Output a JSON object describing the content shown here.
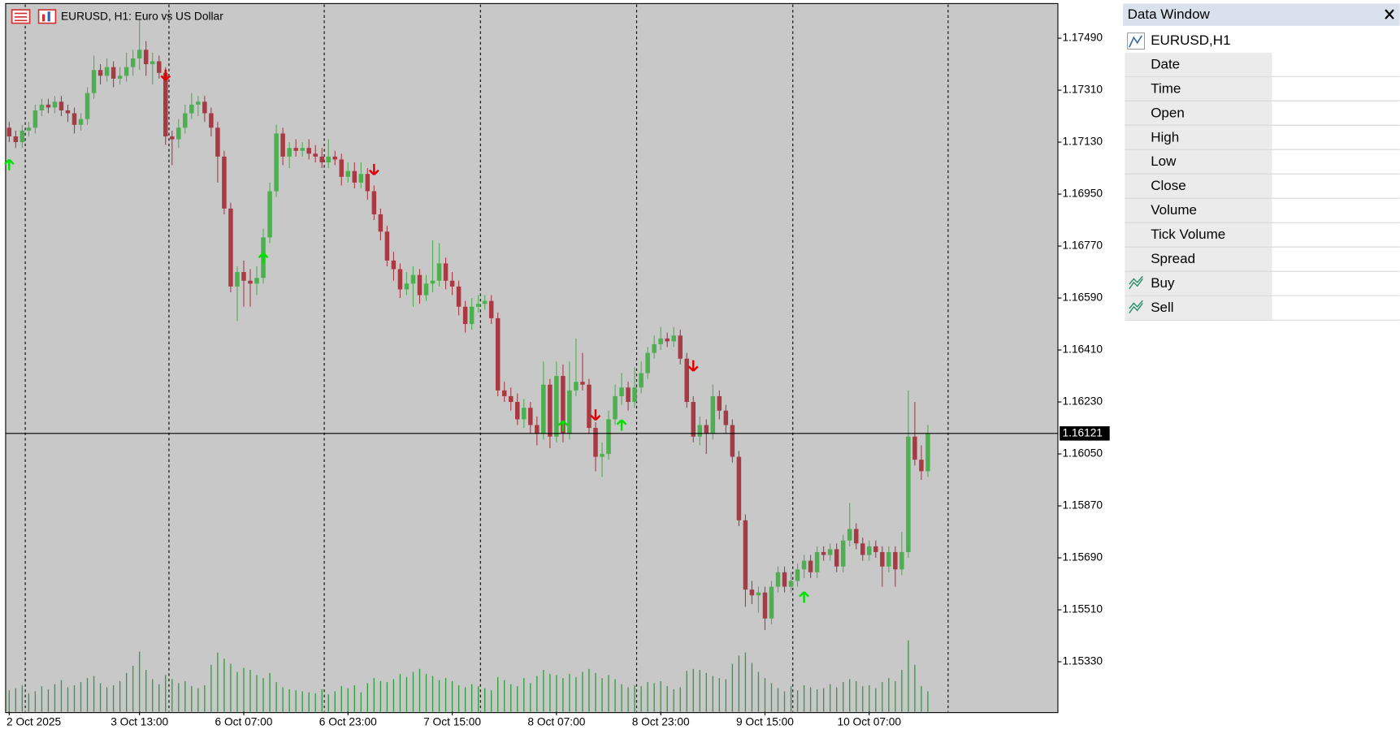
{
  "chart_data": {
    "type": "candlestick",
    "title": "EURUSD, H1:  Euro vs US Dollar",
    "ylim": [
      1.15157,
      1.17607
    ],
    "yticks": [
      {
        "value": 1.1749,
        "label": "1.17490"
      },
      {
        "value": 1.1731,
        "label": "1.17310"
      },
      {
        "value": 1.1713,
        "label": "1.17130"
      },
      {
        "value": 1.1695,
        "label": "1.16950"
      },
      {
        "value": 1.1677,
        "label": "1.16770"
      },
      {
        "value": 1.1659,
        "label": "1.16590"
      },
      {
        "value": 1.1641,
        "label": "1.16410"
      },
      {
        "value": 1.1623,
        "label": "1.16230"
      },
      {
        "value": 1.1605,
        "label": "1.16050"
      },
      {
        "value": 1.1587,
        "label": "1.15870"
      },
      {
        "value": 1.1569,
        "label": "1.15690"
      },
      {
        "value": 1.1551,
        "label": "1.15510"
      },
      {
        "value": 1.1533,
        "label": "1.15330"
      }
    ],
    "xticks": [
      {
        "value": 0,
        "label": "2 Oct 2025"
      },
      {
        "value": 20,
        "label": "3 Oct 13:00"
      },
      {
        "value": 36,
        "label": "6 Oct 07:00"
      },
      {
        "value": 52,
        "label": "6 Oct 23:00"
      },
      {
        "value": 68,
        "label": "7 Oct 15:00"
      },
      {
        "value": 84,
        "label": "8 Oct 07:00"
      },
      {
        "value": 100,
        "label": "8 Oct 23:00"
      },
      {
        "value": 116,
        "label": "9 Oct 15:00"
      },
      {
        "value": 132,
        "label": "10 Oct 07:00"
      }
    ],
    "current_price": 1.16121,
    "bull_color": "#4caf50",
    "bear_color": "#a83a44",
    "volume_color": "#2e9e3e",
    "candles": [
      [
        1.1718,
        1.172,
        1.1713,
        1.1715
      ],
      [
        1.1715,
        1.1717,
        1.1711,
        1.1713
      ],
      [
        1.1713,
        1.1719,
        1.1711,
        1.1717
      ],
      [
        1.1717,
        1.172,
        1.1715,
        1.1718
      ],
      [
        1.1718,
        1.1726,
        1.1716,
        1.1724
      ],
      [
        1.1724,
        1.1728,
        1.1722,
        1.1726
      ],
      [
        1.1726,
        1.1728,
        1.1723,
        1.1725
      ],
      [
        1.1725,
        1.1729,
        1.1723,
        1.1727
      ],
      [
        1.1727,
        1.1729,
        1.1722,
        1.1724
      ],
      [
        1.1724,
        1.1726,
        1.172,
        1.1723
      ],
      [
        1.1723,
        1.1725,
        1.1716,
        1.1719
      ],
      [
        1.1719,
        1.1723,
        1.1717,
        1.1721
      ],
      [
        1.1721,
        1.1732,
        1.1719,
        1.173
      ],
      [
        1.173,
        1.1743,
        1.1728,
        1.1738
      ],
      [
        1.1738,
        1.174,
        1.1733,
        1.1736
      ],
      [
        1.1736,
        1.1742,
        1.1734,
        1.1739
      ],
      [
        1.1739,
        1.1741,
        1.1732,
        1.1735
      ],
      [
        1.1735,
        1.1739,
        1.1733,
        1.1736
      ],
      [
        1.1736,
        1.1744,
        1.1734,
        1.1739
      ],
      [
        1.1739,
        1.1745,
        1.1736,
        1.1742
      ],
      [
        1.1742,
        1.1756,
        1.1738,
        1.1745
      ],
      [
        1.1745,
        1.1748,
        1.1736,
        1.174
      ],
      [
        1.174,
        1.1744,
        1.1733,
        1.1741
      ],
      [
        1.1741,
        1.1743,
        1.1735,
        1.1737
      ],
      [
        1.1737,
        1.1739,
        1.1712,
        1.1715
      ],
      [
        1.1715,
        1.1717,
        1.1705,
        1.1714
      ],
      [
        1.1714,
        1.1721,
        1.1711,
        1.1718
      ],
      [
        1.1718,
        1.1726,
        1.1716,
        1.1723
      ],
      [
        1.1723,
        1.173,
        1.1721,
        1.1726
      ],
      [
        1.1726,
        1.1729,
        1.1722,
        1.1727
      ],
      [
        1.1727,
        1.1729,
        1.172,
        1.1723
      ],
      [
        1.1723,
        1.1725,
        1.1715,
        1.1718
      ],
      [
        1.1718,
        1.172,
        1.1699,
        1.1708
      ],
      [
        1.1708,
        1.171,
        1.1688,
        1.169
      ],
      [
        1.169,
        1.1692,
        1.1661,
        1.1663
      ],
      [
        1.1663,
        1.167,
        1.1651,
        1.1668
      ],
      [
        1.1668,
        1.1672,
        1.1656,
        1.1665
      ],
      [
        1.1665,
        1.1669,
        1.1656,
        1.1664
      ],
      [
        1.1664,
        1.167,
        1.166,
        1.1666
      ],
      [
        1.1666,
        1.1683,
        1.1664,
        1.168
      ],
      [
        1.168,
        1.1699,
        1.1678,
        1.1696
      ],
      [
        1.1696,
        1.1719,
        1.1694,
        1.1716
      ],
      [
        1.1716,
        1.1718,
        1.1705,
        1.1708
      ],
      [
        1.1708,
        1.1713,
        1.1704,
        1.1711
      ],
      [
        1.1711,
        1.1714,
        1.1708,
        1.171
      ],
      [
        1.171,
        1.1713,
        1.1708,
        1.1711
      ],
      [
        1.1711,
        1.1714,
        1.1707,
        1.1709
      ],
      [
        1.1709,
        1.1712,
        1.1706,
        1.1708
      ],
      [
        1.1708,
        1.1711,
        1.1704,
        1.1706
      ],
      [
        1.1706,
        1.1714,
        1.1704,
        1.1708
      ],
      [
        1.1708,
        1.171,
        1.1705,
        1.1707
      ],
      [
        1.1707,
        1.1709,
        1.1698,
        1.1701
      ],
      [
        1.1701,
        1.1706,
        1.1699,
        1.1703
      ],
      [
        1.1703,
        1.1706,
        1.1697,
        1.1699
      ],
      [
        1.1699,
        1.1706,
        1.1697,
        1.1702
      ],
      [
        1.1702,
        1.1704,
        1.1693,
        1.1696
      ],
      [
        1.1696,
        1.1698,
        1.1686,
        1.1688
      ],
      [
        1.1688,
        1.169,
        1.1679,
        1.1682
      ],
      [
        1.1682,
        1.1684,
        1.167,
        1.1672
      ],
      [
        1.1672,
        1.1675,
        1.1665,
        1.1669
      ],
      [
        1.1669,
        1.1671,
        1.1659,
        1.1662
      ],
      [
        1.1662,
        1.1668,
        1.166,
        1.1664
      ],
      [
        1.1664,
        1.167,
        1.1656,
        1.1667
      ],
      [
        1.1667,
        1.1669,
        1.1657,
        1.166
      ],
      [
        1.166,
        1.1667,
        1.1658,
        1.1664
      ],
      [
        1.1664,
        1.1679,
        1.1661,
        1.1665
      ],
      [
        1.1665,
        1.1678,
        1.1663,
        1.1671
      ],
      [
        1.1671,
        1.1673,
        1.1662,
        1.1665
      ],
      [
        1.1665,
        1.1668,
        1.166,
        1.1663
      ],
      [
        1.1663,
        1.1665,
        1.1653,
        1.1656
      ],
      [
        1.1656,
        1.1658,
        1.1647,
        1.165
      ],
      [
        1.165,
        1.1659,
        1.1648,
        1.1656
      ],
      [
        1.1656,
        1.166,
        1.1654,
        1.1657
      ],
      [
        1.1657,
        1.166,
        1.1655,
        1.1658
      ],
      [
        1.1658,
        1.166,
        1.165,
        1.1652
      ],
      [
        1.1652,
        1.1654,
        1.1625,
        1.1627
      ],
      [
        1.1627,
        1.163,
        1.1623,
        1.1625
      ],
      [
        1.1625,
        1.1628,
        1.162,
        1.1623
      ],
      [
        1.1623,
        1.1626,
        1.1615,
        1.1617
      ],
      [
        1.1617,
        1.1624,
        1.1614,
        1.1621
      ],
      [
        1.1621,
        1.1623,
        1.1612,
        1.1615
      ],
      [
        1.1615,
        1.1618,
        1.1608,
        1.1612
      ],
      [
        1.1612,
        1.1637,
        1.161,
        1.1629
      ],
      [
        1.1629,
        1.1631,
        1.1607,
        1.1611
      ],
      [
        1.1611,
        1.1637,
        1.1609,
        1.1632
      ],
      [
        1.1632,
        1.1636,
        1.1609,
        1.1612
      ],
      [
        1.1612,
        1.1637,
        1.161,
        1.1627
      ],
      [
        1.1627,
        1.1645,
        1.1625,
        1.163
      ],
      [
        1.163,
        1.164,
        1.1627,
        1.1629
      ],
      [
        1.1629,
        1.1631,
        1.1612,
        1.1614
      ],
      [
        1.1614,
        1.1616,
        1.1599,
        1.1604
      ],
      [
        1.1604,
        1.1609,
        1.1597,
        1.1605
      ],
      [
        1.1605,
        1.162,
        1.1603,
        1.1617
      ],
      [
        1.1617,
        1.1629,
        1.1615,
        1.1625
      ],
      [
        1.1625,
        1.1633,
        1.1622,
        1.1628
      ],
      [
        1.1628,
        1.163,
        1.162,
        1.1623
      ],
      [
        1.1623,
        1.1635,
        1.1621,
        1.1628
      ],
      [
        1.1628,
        1.1637,
        1.1626,
        1.1633
      ],
      [
        1.1633,
        1.1642,
        1.1631,
        1.164
      ],
      [
        1.164,
        1.1646,
        1.1638,
        1.1643
      ],
      [
        1.1643,
        1.1649,
        1.1641,
        1.1645
      ],
      [
        1.1645,
        1.1647,
        1.1642,
        1.1644
      ],
      [
        1.1644,
        1.1649,
        1.1642,
        1.1646
      ],
      [
        1.1646,
        1.1648,
        1.1636,
        1.1638
      ],
      [
        1.1638,
        1.164,
        1.1621,
        1.1623
      ],
      [
        1.1623,
        1.1625,
        1.1609,
        1.1611
      ],
      [
        1.1611,
        1.1618,
        1.1608,
        1.1615
      ],
      [
        1.1615,
        1.1617,
        1.1605,
        1.1612
      ],
      [
        1.1612,
        1.1629,
        1.161,
        1.1625
      ],
      [
        1.1625,
        1.1627,
        1.1617,
        1.162
      ],
      [
        1.162,
        1.1622,
        1.1612,
        1.1615
      ],
      [
        1.1615,
        1.1617,
        1.1602,
        1.1604
      ],
      [
        1.1604,
        1.1606,
        1.158,
        1.1582
      ],
      [
        1.1582,
        1.1584,
        1.1552,
        1.1558
      ],
      [
        1.1558,
        1.1561,
        1.1553,
        1.1556
      ],
      [
        1.1556,
        1.1559,
        1.155,
        1.1557
      ],
      [
        1.1557,
        1.1559,
        1.1544,
        1.1548
      ],
      [
        1.1548,
        1.1561,
        1.1546,
        1.1559
      ],
      [
        1.1559,
        1.1566,
        1.1557,
        1.1564
      ],
      [
        1.1564,
        1.1566,
        1.1557,
        1.1559
      ],
      [
        1.1559,
        1.1564,
        1.1557,
        1.1561
      ],
      [
        1.1561,
        1.1567,
        1.1559,
        1.1565
      ],
      [
        1.1565,
        1.157,
        1.1562,
        1.1568
      ],
      [
        1.1568,
        1.157,
        1.1562,
        1.1564
      ],
      [
        1.1564,
        1.1573,
        1.1562,
        1.1571
      ],
      [
        1.1571,
        1.1573,
        1.1568,
        1.157
      ],
      [
        1.157,
        1.1574,
        1.1568,
        1.1572
      ],
      [
        1.1572,
        1.1574,
        1.1564,
        1.1566
      ],
      [
        1.1566,
        1.1577,
        1.1564,
        1.1575
      ],
      [
        1.1575,
        1.1588,
        1.1573,
        1.1579
      ],
      [
        1.1579,
        1.1581,
        1.1572,
        1.1574
      ],
      [
        1.1574,
        1.1576,
        1.1568,
        1.157
      ],
      [
        1.157,
        1.1575,
        1.1568,
        1.1573
      ],
      [
        1.1573,
        1.1575,
        1.1569,
        1.1571
      ],
      [
        1.1571,
        1.1573,
        1.1559,
        1.1566
      ],
      [
        1.1566,
        1.1573,
        1.1564,
        1.1571
      ],
      [
        1.1571,
        1.1573,
        1.1559,
        1.1565
      ],
      [
        1.1565,
        1.1578,
        1.1563,
        1.1571
      ],
      [
        1.1571,
        1.1627,
        1.1569,
        1.1611
      ],
      [
        1.1611,
        1.1623,
        1.1601,
        1.1603
      ],
      [
        1.1603,
        1.1608,
        1.1596,
        1.1599
      ],
      [
        1.1599,
        1.1615,
        1.1597,
        1.16121
      ]
    ],
    "volumes": [
      2100,
      2300,
      2600,
      1800,
      2000,
      2500,
      2200,
      2700,
      3100,
      2400,
      2600,
      2900,
      3300,
      3500,
      2800,
      2400,
      2600,
      3000,
      3800,
      4500,
      5900,
      4100,
      3200,
      2700,
      3600,
      3200,
      2800,
      3000,
      2500,
      2300,
      2600,
      4600,
      5800,
      5200,
      4700,
      3900,
      4300,
      4100,
      3600,
      3300,
      3800,
      2900,
      2400,
      2200,
      2100,
      2000,
      1900,
      1800,
      2200,
      1700,
      2000,
      2500,
      2300,
      2600,
      1900,
      2800,
      3300,
      3000,
      2900,
      3200,
      3700,
      3400,
      3900,
      4200,
      3700,
      3500,
      3100,
      3300,
      3000,
      2600,
      2400,
      2700,
      2500,
      2300,
      2100,
      3400,
      3100,
      2700,
      2500,
      3300,
      2800,
      3500,
      4100,
      3700,
      3600,
      3300,
      3700,
      3400,
      3900,
      4200,
      3800,
      3300,
      3600,
      3200,
      2700,
      2400,
      2600,
      2500,
      2900,
      2800,
      3000,
      2500,
      2200,
      2400,
      4000,
      4200,
      4100,
      3800,
      3500,
      3300,
      3200,
      4700,
      5500,
      5800,
      4800,
      3900,
      3300,
      2800,
      2300,
      2000,
      2500,
      2100,
      2600,
      2400,
      2200,
      2300,
      2700,
      2400,
      2900,
      3200,
      3000,
      2500,
      2600,
      2300,
      2900,
      3300,
      3000,
      4100,
      7000,
      4600,
      2500,
      2000
    ],
    "buy_signals": {
      "color": "#00e000",
      "indices": [
        0,
        39,
        85,
        94,
        122
      ],
      "values": [
        1.17051,
        1.16727,
        1.16146,
        1.16149,
        1.15553
      ]
    },
    "sell_signals": {
      "color": "#e00000",
      "indices": [
        24,
        56,
        90,
        105
      ],
      "values": [
        1.17363,
        1.17036,
        1.16186,
        1.16356
      ]
    }
  },
  "data_window": {
    "title": "Data Window",
    "symbol": "EURUSD,H1",
    "rows": [
      "Date",
      "Time",
      "Open",
      "High",
      "Low",
      "Close",
      "Volume",
      "Tick Volume",
      "Spread"
    ],
    "indicator_rows": [
      "Buy",
      "Sell"
    ]
  }
}
